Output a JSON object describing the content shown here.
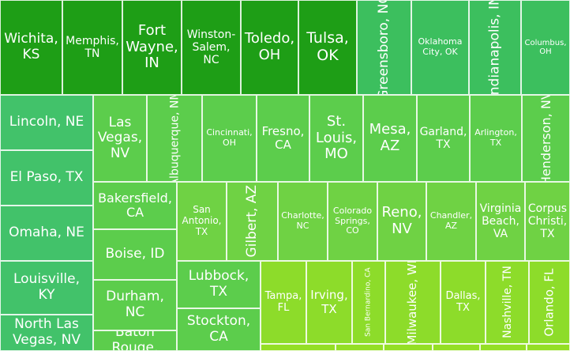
{
  "chart_data": {
    "type": "treemap",
    "title": "",
    "tiles": [
      {
        "name": "Wichita, KS",
        "label": "Wichita,\nKS",
        "color": "#1e9e16"
      },
      {
        "name": "Memphis, TN",
        "label": "Memphis,\nTN",
        "color": "#1e9e16"
      },
      {
        "name": "Fort Wayne, IN",
        "label": "Fort\nWayne,\nIN",
        "color": "#1e9e16"
      },
      {
        "name": "Winston-Salem, NC",
        "label": "Winston-\nSalem,\nNC",
        "color": "#1e9e16"
      },
      {
        "name": "Toledo, OH",
        "label": "Toledo,\nOH",
        "color": "#1e9e16"
      },
      {
        "name": "Tulsa, OK",
        "label": "Tulsa,\nOK",
        "color": "#1e9e16"
      },
      {
        "name": "Greensboro, NC",
        "label": "Greensboro, NC",
        "color": "#3cbf5e"
      },
      {
        "name": "Oklahoma City, OK",
        "label": "Oklahoma\nCity, OK",
        "color": "#3cbf5e"
      },
      {
        "name": "Indianapolis, IN",
        "label": "Indianapolis, IN",
        "color": "#3cbf5e"
      },
      {
        "name": "Columbus, OH",
        "label": "Columbus,\nOH",
        "color": "#3cbf5e"
      },
      {
        "name": "Lincoln, NE",
        "label": "Lincoln, NE",
        "color": "#42c26a"
      },
      {
        "name": "El Paso, TX",
        "label": "El Paso, TX",
        "color": "#42c26a"
      },
      {
        "name": "Omaha, NE",
        "label": "Omaha, NE",
        "color": "#42c26a"
      },
      {
        "name": "Louisville, KY",
        "label": "Louisville,\nKY",
        "color": "#42c26a"
      },
      {
        "name": "North Las Vegas, NV",
        "label": "North Las\nVegas, NV",
        "color": "#42c26a"
      },
      {
        "name": "Las Vegas, NV",
        "label": "Las\nVegas,\nNV",
        "color": "#5ccd4c"
      },
      {
        "name": "Albuquerque, NM",
        "label": "Albuquerque, NM",
        "color": "#5ccd4c"
      },
      {
        "name": "Cincinnati, OH",
        "label": "Cincinnati,\nOH",
        "color": "#5ccd4c"
      },
      {
        "name": "Fresno, CA",
        "label": "Fresno,\nCA",
        "color": "#5ccd4c"
      },
      {
        "name": "St. Louis, MO",
        "label": "St.\nLouis,\nMO",
        "color": "#5ccd4c"
      },
      {
        "name": "Mesa, AZ",
        "label": "Mesa,\nAZ",
        "color": "#5ccd4c"
      },
      {
        "name": "Garland, TX",
        "label": "Garland,\nTX",
        "color": "#5ccd4c"
      },
      {
        "name": "Arlington, TX",
        "label": "Arlington,\nTX",
        "color": "#5ccd4c"
      },
      {
        "name": "Henderson, NV",
        "label": "Henderson, NV",
        "color": "#5ccd4c"
      },
      {
        "name": "Bakersfield, CA",
        "label": "Bakersfield,\nCA",
        "color": "#5ccd4c"
      },
      {
        "name": "Boise, ID",
        "label": "Boise, ID",
        "color": "#5ccd4c"
      },
      {
        "name": "Durham, NC",
        "label": "Durham,\nNC",
        "color": "#5ccd4c"
      },
      {
        "name": "Baton Rouge, LA",
        "label": "Baton\nRouge,",
        "color": "#5ccd4c"
      },
      {
        "name": "San Antonio, TX",
        "label": "San\nAntonio,\nTX",
        "color": "#6fd244"
      },
      {
        "name": "Gilbert, AZ",
        "label": "Gilbert, AZ",
        "color": "#6fd244"
      },
      {
        "name": "Charlotte, NC",
        "label": "Charlotte,\nNC",
        "color": "#6fd244"
      },
      {
        "name": "Colorado Springs, CO",
        "label": "Colorado\nSprings,\nCO",
        "color": "#6fd244"
      },
      {
        "name": "Reno, NV",
        "label": "Reno,\nNV",
        "color": "#6fd244"
      },
      {
        "name": "Chandler, AZ",
        "label": "Chandler,\nAZ",
        "color": "#6fd244"
      },
      {
        "name": "Virginia Beach, VA",
        "label": "Virginia\nBeach,\nVA",
        "color": "#6fd244"
      },
      {
        "name": "Corpus Christi, TX",
        "label": "Corpus\nChristi,\nTX",
        "color": "#6fd244"
      },
      {
        "name": "Lubbock, TX",
        "label": "Lubbock,\nTX",
        "color": "#5ccd4c"
      },
      {
        "name": "Stockton, CA",
        "label": "Stockton,\nCA",
        "color": "#5ccd4c"
      },
      {
        "name": "Tampa, FL",
        "label": "Tampa,\nFL",
        "color": "#8ddc2a"
      },
      {
        "name": "Irving, TX",
        "label": "Irving,\nTX",
        "color": "#8ddc2a"
      },
      {
        "name": "San Bernardino, CA",
        "label": "San Bernardino,\nCA",
        "color": "#8ddc2a"
      },
      {
        "name": "Milwaukee, WI",
        "label": "Milwaukee,\nWI",
        "color": "#8ddc2a"
      },
      {
        "name": "Dallas, TX",
        "label": "Dallas,\nTX",
        "color": "#8ddc2a"
      },
      {
        "name": "Nashville, TN",
        "label": "Nashville,\nTN",
        "color": "#8ddc2a"
      },
      {
        "name": "Orlando, FL",
        "label": "Orlando, FL",
        "color": "#8ddc2a"
      },
      {
        "name": "",
        "label": "",
        "color": "#94df25"
      },
      {
        "name": "",
        "label": "",
        "color": "#94df25"
      },
      {
        "name": "",
        "label": "",
        "color": "#94df25"
      },
      {
        "name": "",
        "label": "",
        "color": "#94df25"
      },
      {
        "name": "",
        "label": "",
        "color": "#94df25"
      },
      {
        "name": "",
        "label": "",
        "color": "#94df25"
      }
    ]
  }
}
